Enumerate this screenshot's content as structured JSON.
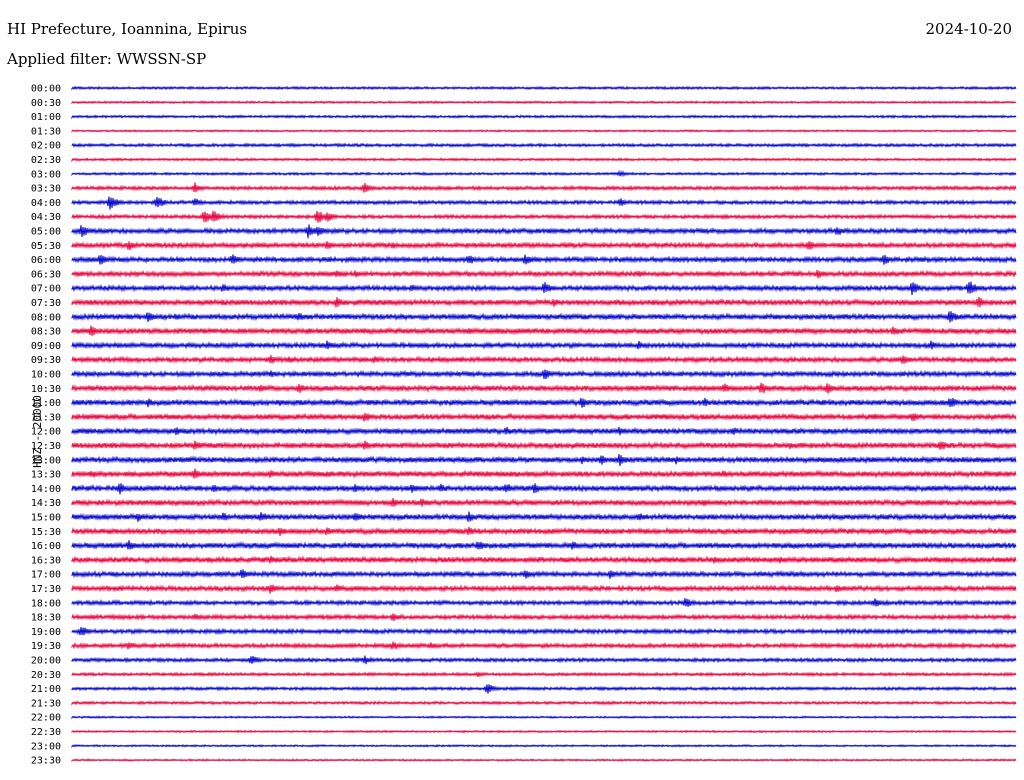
{
  "header": {
    "title": "HI Prefecture, Ioannina, Epirus",
    "date": "2024-10-20",
    "filter": "Applied filter: WWSSN-SP",
    "channel_label": "HNZ - 20000"
  },
  "chart_data": {
    "type": "line",
    "title": "HI Prefecture, Ioannina, Epirus",
    "subtitle": "Applied filter: WWSSN-SP",
    "ylabel": "HNZ - 20000",
    "xlabel": "",
    "colors": {
      "even": "#0000cc",
      "odd": "#e8003c"
    },
    "rows": [
      "00:00",
      "00:30",
      "01:00",
      "01:30",
      "02:00",
      "02:30",
      "03:00",
      "03:30",
      "04:00",
      "04:30",
      "05:00",
      "05:30",
      "06:00",
      "06:30",
      "07:00",
      "07:30",
      "08:00",
      "08:30",
      "09:00",
      "09:30",
      "10:00",
      "10:30",
      "11:00",
      "11:30",
      "12:00",
      "12:30",
      "13:00",
      "13:30",
      "14:00",
      "14:30",
      "15:00",
      "15:30",
      "16:00",
      "16:30",
      "17:00",
      "17:30",
      "18:00",
      "18:30",
      "19:00",
      "19:30",
      "20:00",
      "20:30",
      "21:00",
      "21:30",
      "22:00",
      "22:30",
      "23:00",
      "23:30"
    ],
    "noise": [
      0.8,
      0.7,
      0.8,
      0.6,
      1.0,
      0.8,
      0.8,
      1.2,
      1.2,
      1.2,
      1.6,
      1.6,
      1.6,
      1.6,
      1.6,
      1.8,
      1.8,
      1.8,
      1.6,
      1.6,
      1.6,
      1.8,
      1.8,
      1.8,
      1.8,
      1.8,
      1.8,
      1.8,
      1.8,
      1.8,
      1.8,
      1.8,
      1.8,
      1.8,
      1.6,
      1.6,
      1.4,
      1.4,
      1.4,
      1.4,
      1.2,
      1.0,
      1.0,
      0.9,
      0.6,
      0.6,
      0.6,
      0.6
    ],
    "events": [
      [],
      [],
      [],
      [],
      [],
      [],
      [
        [
          0.58,
          3
        ]
      ],
      [
        [
          0.13,
          6
        ],
        [
          0.31,
          6
        ]
      ],
      [
        [
          0.04,
          8
        ],
        [
          0.09,
          7
        ],
        [
          0.13,
          5
        ],
        [
          0.58,
          5
        ]
      ],
      [
        [
          0.14,
          8
        ],
        [
          0.15,
          7
        ],
        [
          0.26,
          8
        ],
        [
          0.27,
          6
        ]
      ],
      [
        [
          0.01,
          7
        ],
        [
          0.25,
          8
        ],
        [
          0.26,
          6
        ],
        [
          0.81,
          6
        ]
      ],
      [
        [
          0.06,
          6
        ],
        [
          0.27,
          5
        ],
        [
          0.34,
          4
        ],
        [
          0.6,
          3
        ],
        [
          0.78,
          6
        ]
      ],
      [
        [
          0.03,
          7
        ],
        [
          0.17,
          6
        ],
        [
          0.42,
          6
        ],
        [
          0.48,
          6
        ],
        [
          0.86,
          6
        ]
      ],
      [
        [
          0.28,
          5
        ],
        [
          0.3,
          4
        ],
        [
          0.6,
          4
        ],
        [
          0.79,
          5
        ]
      ],
      [
        [
          0.16,
          5
        ],
        [
          0.36,
          4
        ],
        [
          0.5,
          7
        ],
        [
          0.89,
          8
        ],
        [
          0.95,
          9
        ]
      ],
      [
        [
          0.28,
          6
        ],
        [
          0.51,
          5
        ],
        [
          0.96,
          7
        ]
      ],
      [
        [
          0.08,
          6
        ],
        [
          0.11,
          4
        ],
        [
          0.24,
          5
        ],
        [
          0.93,
          8
        ]
      ],
      [
        [
          0.02,
          6
        ],
        [
          0.25,
          4
        ],
        [
          0.42,
          4
        ],
        [
          0.87,
          6
        ]
      ],
      [
        [
          0.27,
          5
        ],
        [
          0.6,
          5
        ],
        [
          0.91,
          5
        ]
      ],
      [
        [
          0.21,
          5
        ],
        [
          0.23,
          4
        ],
        [
          0.32,
          4
        ],
        [
          0.88,
          6
        ]
      ],
      [
        [
          0.21,
          4
        ],
        [
          0.5,
          7
        ]
      ],
      [
        [
          0.2,
          5
        ],
        [
          0.24,
          6
        ],
        [
          0.69,
          6
        ],
        [
          0.73,
          7
        ],
        [
          0.8,
          6
        ]
      ],
      [
        [
          0.08,
          5
        ],
        [
          0.22,
          4
        ],
        [
          0.54,
          6
        ],
        [
          0.67,
          5
        ],
        [
          0.93,
          7
        ]
      ],
      [
        [
          0.31,
          6
        ],
        [
          0.85,
          4
        ],
        [
          0.89,
          6
        ]
      ],
      [
        [
          0.11,
          5
        ],
        [
          0.46,
          5
        ],
        [
          0.58,
          5
        ],
        [
          0.7,
          5
        ]
      ],
      [
        [
          0.13,
          6
        ],
        [
          0.31,
          5
        ],
        [
          0.76,
          4
        ],
        [
          0.92,
          6
        ]
      ],
      [
        [
          0.54,
          5
        ],
        [
          0.56,
          6
        ],
        [
          0.58,
          7
        ],
        [
          0.64,
          5
        ]
      ],
      [
        [
          0.02,
          5
        ],
        [
          0.13,
          6
        ],
        [
          0.21,
          5
        ],
        [
          0.27,
          4
        ],
        [
          0.44,
          4
        ],
        [
          0.69,
          4
        ]
      ],
      [
        [
          0.05,
          7
        ],
        [
          0.15,
          5
        ],
        [
          0.3,
          5
        ],
        [
          0.36,
          6
        ],
        [
          0.39,
          5
        ],
        [
          0.46,
          6
        ],
        [
          0.49,
          6
        ]
      ],
      [
        [
          0.34,
          5
        ],
        [
          0.37,
          5
        ],
        [
          0.67,
          4
        ]
      ],
      [
        [
          0.07,
          5
        ],
        [
          0.16,
          5
        ],
        [
          0.2,
          6
        ],
        [
          0.3,
          6
        ],
        [
          0.42,
          6
        ],
        [
          0.6,
          5
        ]
      ],
      [
        [
          0.22,
          5
        ],
        [
          0.27,
          5
        ],
        [
          0.42,
          5
        ],
        [
          0.78,
          4
        ]
      ],
      [
        [
          0.06,
          6
        ],
        [
          0.43,
          6
        ],
        [
          0.53,
          6
        ]
      ],
      [
        [
          0.21,
          5
        ],
        [
          0.33,
          4
        ],
        [
          0.68,
          4
        ],
        [
          0.75,
          4
        ]
      ],
      [
        [
          0.18,
          6
        ],
        [
          0.48,
          5
        ],
        [
          0.57,
          5
        ]
      ],
      [
        [
          0.21,
          6
        ],
        [
          0.28,
          5
        ],
        [
          0.81,
          5
        ]
      ],
      [
        [
          0.65,
          6
        ],
        [
          0.85,
          5
        ]
      ],
      [
        [
          0.13,
          4
        ],
        [
          0.34,
          5
        ]
      ],
      [
        [
          0.01,
          6
        ]
      ],
      [
        [
          0.06,
          5
        ],
        [
          0.34,
          5
        ],
        [
          0.38,
          4
        ]
      ],
      [
        [
          0.19,
          6
        ],
        [
          0.31,
          5
        ]
      ],
      [
        [
          0.43,
          3
        ]
      ],
      [
        [
          0.44,
          6
        ]
      ],
      [],
      [],
      [],
      [],
      []
    ]
  }
}
